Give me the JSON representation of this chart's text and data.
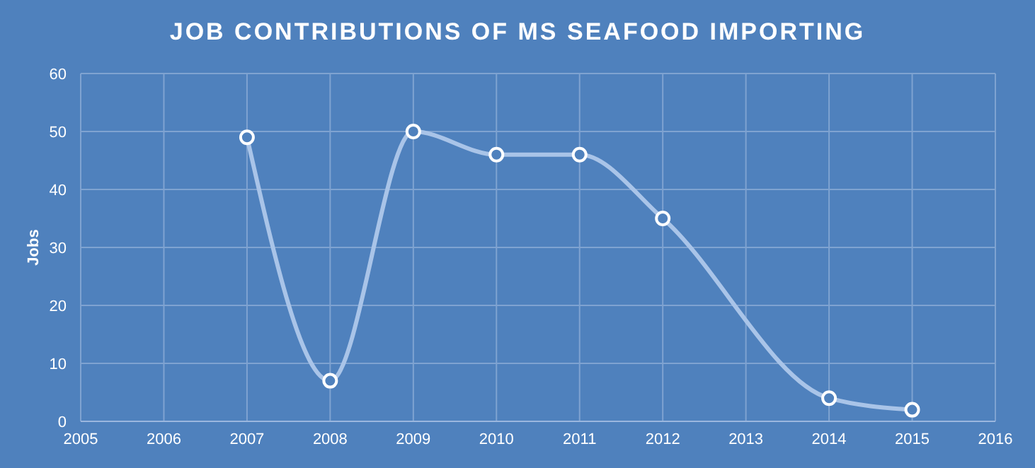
{
  "chart_data": {
    "type": "line",
    "title": "JOB CONTRIBUTIONS  OF MS SEAFOOD IMPORTING",
    "ylabel": "Jobs",
    "x": [
      2007,
      2008,
      2009,
      2010,
      2011,
      2012,
      2014,
      2015
    ],
    "series": [
      {
        "color": "#a9c4e8",
        "values": [
          49,
          7,
          50,
          46,
          46,
          35,
          4,
          2
        ]
      }
    ],
    "xlim": [
      2005,
      2016
    ],
    "xticks": [
      2005,
      2006,
      2007,
      2008,
      2009,
      2010,
      2011,
      2012,
      2013,
      2014,
      2015,
      2016
    ],
    "ylim": [
      0,
      60
    ],
    "yticks": [
      0,
      10,
      20,
      30,
      40,
      50,
      60
    ],
    "grid": true,
    "marker": "circle",
    "line_style": "solid"
  }
}
